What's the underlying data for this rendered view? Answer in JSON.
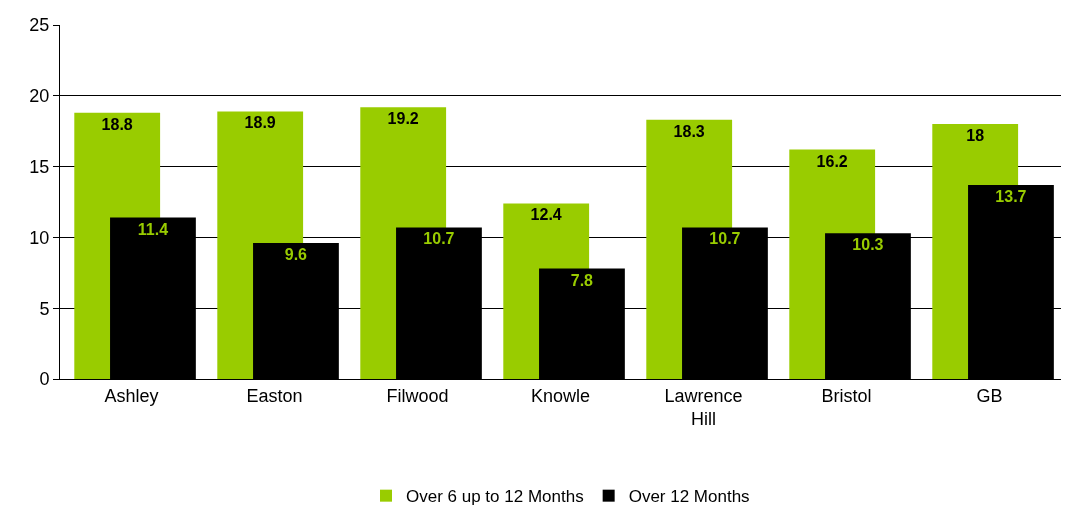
{
  "chart_data": {
    "type": "bar",
    "categories": [
      "Ashley",
      "Easton",
      "Filwood",
      "Knowle",
      "Lawrence Hill",
      "Bristol",
      "GB"
    ],
    "series": [
      {
        "name": "Over 6 up to 12 Months",
        "color": "#99cc00",
        "values": [
          18.8,
          18.9,
          19.2,
          12.4,
          18.3,
          16.2,
          18
        ]
      },
      {
        "name": "Over 12 Months",
        "color": "#000000",
        "values": [
          11.4,
          9.6,
          10.7,
          7.8,
          10.7,
          10.3,
          13.7
        ]
      }
    ],
    "ylim": [
      0,
      25
    ],
    "yticks": [
      0,
      5,
      10,
      15,
      20,
      25
    ],
    "grid": "y",
    "legend": "bottom",
    "data_labels": true
  }
}
